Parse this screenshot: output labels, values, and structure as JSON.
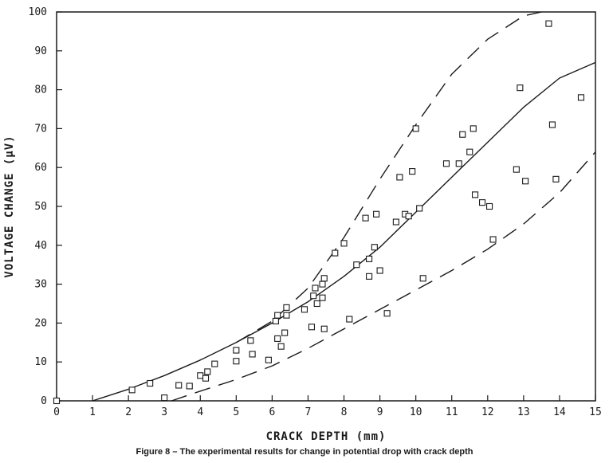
{
  "chart_data": {
    "type": "scatter",
    "title": "",
    "xlabel": "CRACK DEPTH (mm)",
    "ylabel": "VOLTAGE CHANGE (µV)",
    "xlim": [
      0,
      15
    ],
    "ylim": [
      0,
      100
    ],
    "x_ticks": [
      0,
      1,
      2,
      3,
      4,
      5,
      6,
      7,
      8,
      9,
      10,
      11,
      12,
      13,
      14,
      15
    ],
    "y_ticks": [
      0,
      10,
      20,
      30,
      40,
      50,
      60,
      70,
      80,
      90,
      100
    ],
    "grid": false,
    "legend": "none",
    "marker": "open-square",
    "series": [
      {
        "kind": "points",
        "points": [
          [
            0.0,
            0.0
          ],
          [
            2.1,
            2.8
          ],
          [
            2.6,
            4.5
          ],
          [
            3.0,
            0.8
          ],
          [
            3.4,
            4.0
          ],
          [
            3.7,
            3.8
          ],
          [
            4.0,
            6.5
          ],
          [
            4.15,
            5.8
          ],
          [
            4.2,
            7.5
          ],
          [
            4.4,
            9.5
          ],
          [
            5.0,
            13.0
          ],
          [
            5.0,
            10.2
          ],
          [
            5.4,
            15.5
          ],
          [
            5.45,
            12.0
          ],
          [
            5.9,
            10.5
          ],
          [
            6.1,
            20.5
          ],
          [
            6.15,
            22.0
          ],
          [
            6.15,
            16.0
          ],
          [
            6.25,
            14.0
          ],
          [
            6.35,
            17.5
          ],
          [
            6.4,
            24.0
          ],
          [
            6.4,
            22.0
          ],
          [
            6.9,
            23.5
          ],
          [
            7.1,
            19.0
          ],
          [
            7.15,
            27.0
          ],
          [
            7.2,
            29.0
          ],
          [
            7.25,
            25.0
          ],
          [
            7.4,
            30.0
          ],
          [
            7.4,
            26.5
          ],
          [
            7.45,
            31.5
          ],
          [
            7.45,
            18.5
          ],
          [
            7.75,
            38.0
          ],
          [
            8.0,
            40.5
          ],
          [
            8.15,
            21.0
          ],
          [
            8.35,
            35.0
          ],
          [
            8.6,
            47.0
          ],
          [
            8.7,
            36.5
          ],
          [
            8.7,
            32.0
          ],
          [
            8.85,
            39.5
          ],
          [
            8.9,
            48.0
          ],
          [
            9.0,
            33.5
          ],
          [
            9.2,
            22.5
          ],
          [
            9.45,
            46.0
          ],
          [
            9.55,
            57.5
          ],
          [
            9.7,
            48.0
          ],
          [
            9.8,
            47.5
          ],
          [
            9.9,
            59.0
          ],
          [
            10.0,
            70.0
          ],
          [
            10.1,
            49.5
          ],
          [
            10.2,
            31.5
          ],
          [
            10.85,
            61.0
          ],
          [
            11.2,
            61.0
          ],
          [
            11.3,
            68.5
          ],
          [
            11.5,
            64.0
          ],
          [
            11.6,
            70.0
          ],
          [
            11.65,
            53.0
          ],
          [
            11.85,
            51.0
          ],
          [
            12.05,
            50.0
          ],
          [
            12.15,
            41.5
          ],
          [
            12.8,
            59.5
          ],
          [
            12.9,
            80.5
          ],
          [
            13.05,
            56.5
          ],
          [
            13.7,
            97.0
          ],
          [
            13.8,
            71.0
          ],
          [
            13.9,
            57.0
          ],
          [
            14.6,
            78.0
          ]
        ]
      },
      {
        "kind": "solid-curve",
        "points": [
          [
            1.0,
            0.0
          ],
          [
            2.0,
            3.0
          ],
          [
            3.0,
            6.5
          ],
          [
            4.0,
            10.5
          ],
          [
            5.0,
            15.0
          ],
          [
            6.0,
            20.0
          ],
          [
            7.0,
            25.5
          ],
          [
            8.0,
            32.0
          ],
          [
            9.0,
            39.5
          ],
          [
            10.0,
            48.5
          ],
          [
            11.0,
            57.5
          ],
          [
            12.0,
            66.5
          ],
          [
            13.0,
            75.5
          ],
          [
            14.0,
            83.0
          ],
          [
            15.0,
            87.0
          ]
        ]
      },
      {
        "kind": "dashed-curve",
        "points": [
          [
            5.0,
            15.0
          ],
          [
            6.0,
            20.5
          ],
          [
            7.0,
            29.0
          ],
          [
            8.0,
            42.0
          ],
          [
            9.0,
            57.0
          ],
          [
            10.0,
            71.0
          ],
          [
            11.0,
            84.0
          ],
          [
            12.0,
            93.0
          ],
          [
            13.0,
            99.0
          ],
          [
            13.5,
            100.0
          ]
        ]
      },
      {
        "kind": "dashed-curve",
        "points": [
          [
            3.2,
            0.0
          ],
          [
            4.0,
            2.5
          ],
          [
            5.0,
            5.5
          ],
          [
            6.0,
            9.0
          ],
          [
            7.0,
            13.5
          ],
          [
            8.0,
            18.5
          ],
          [
            9.0,
            23.5
          ],
          [
            10.0,
            28.5
          ],
          [
            11.0,
            33.5
          ],
          [
            12.0,
            39.0
          ],
          [
            13.0,
            45.5
          ],
          [
            14.0,
            53.5
          ],
          [
            15.0,
            64.0
          ]
        ]
      }
    ]
  },
  "caption": "Figure 8 – The experimental results for change in potential drop with crack depth"
}
